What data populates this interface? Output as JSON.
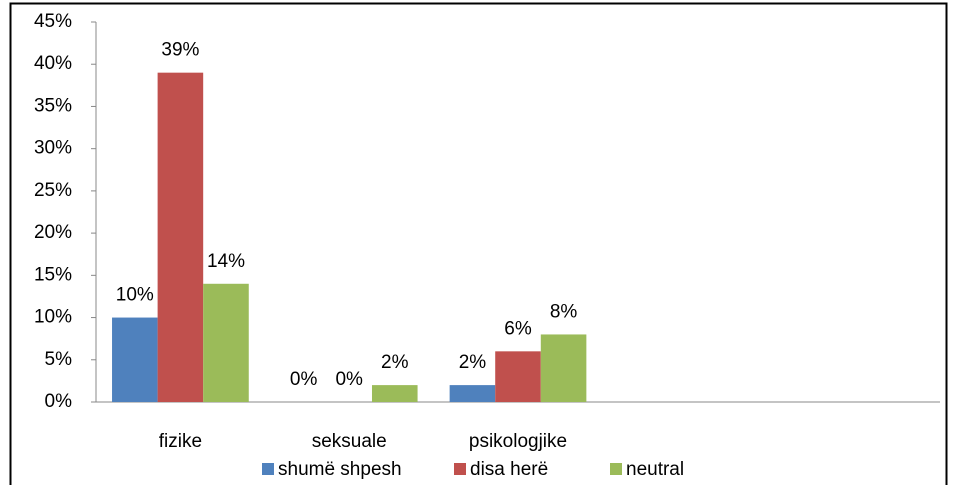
{
  "chart_data": {
    "type": "bar",
    "categories": [
      "fizike",
      "seksuale",
      "psikologjike",
      null,
      null
    ],
    "series": [
      {
        "name": "shumë shpesh",
        "color": "#4f81bd",
        "values": [
          10,
          0,
          2,
          null,
          null
        ],
        "value_labels": [
          "10%",
          "0%",
          "2%",
          null,
          null
        ]
      },
      {
        "name": "disa herë",
        "color": "#c0504d",
        "values": [
          39,
          0,
          6,
          null,
          null
        ],
        "value_labels": [
          "39%",
          "0%",
          "6%",
          null,
          null
        ]
      },
      {
        "name": "neutral",
        "color": "#9bbb59",
        "values": [
          14,
          2,
          8,
          null,
          null
        ],
        "value_labels": [
          "14%",
          "2%",
          "8%",
          null,
          null
        ]
      }
    ],
    "ylim": [
      0,
      45
    ],
    "yticks": [
      {
        "value": 0,
        "label": "0%"
      },
      {
        "value": 5,
        "label": "5%"
      },
      {
        "value": 10,
        "label": "10%"
      },
      {
        "value": 15,
        "label": "15%"
      },
      {
        "value": 20,
        "label": "20%"
      },
      {
        "value": 25,
        "label": "25%"
      },
      {
        "value": 30,
        "label": "30%"
      },
      {
        "value": 35,
        "label": "35%"
      },
      {
        "value": 40,
        "label": "40%"
      },
      {
        "value": 45,
        "label": "45%"
      }
    ],
    "grid": false,
    "legend": "bottom"
  }
}
